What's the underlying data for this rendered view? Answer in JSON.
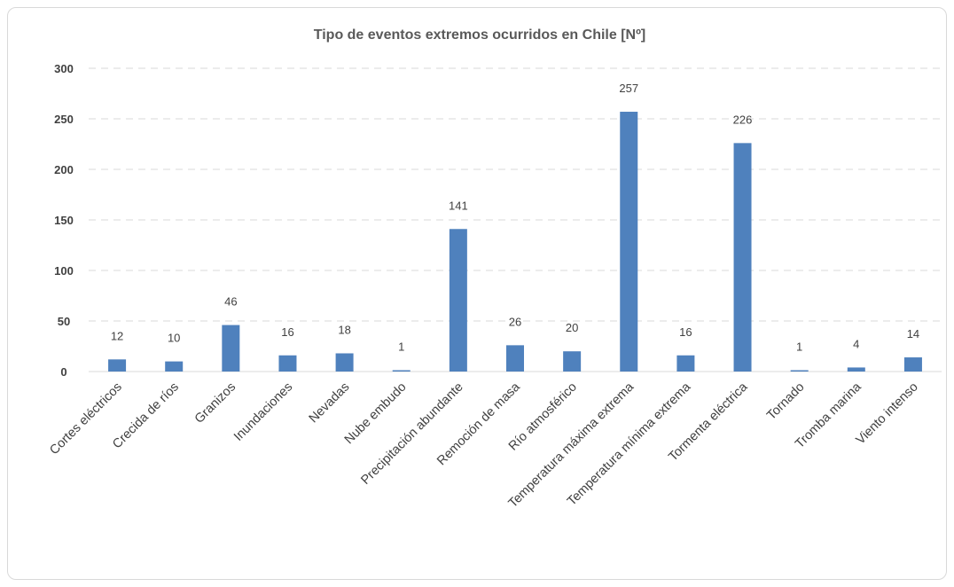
{
  "chart_data": {
    "type": "bar",
    "title": "Tipo de eventos extremos ocurridos en Chile [Nº]",
    "xlabel": "",
    "ylabel": "",
    "ylim": [
      0,
      300
    ],
    "yticks": [
      0,
      50,
      100,
      150,
      200,
      250,
      300
    ],
    "grid": true,
    "legend": "none",
    "bar_color": "#4f81bd",
    "categories": [
      "Cortes eléctricos",
      "Crecida de ríos",
      "Granizos",
      "Inundaciones",
      "Nevadas",
      "Nube embudo",
      "Precipitación abundante",
      "Remoción de masa",
      "Río atmosférico",
      "Temperatura máxima extrema",
      "Temperatura mínima extrema",
      "Tormenta eléctrica",
      "Tornado",
      "Tromba marina",
      "Viento intenso"
    ],
    "values": [
      12,
      10,
      46,
      16,
      18,
      1,
      141,
      26,
      20,
      257,
      16,
      226,
      1,
      4,
      14
    ]
  }
}
